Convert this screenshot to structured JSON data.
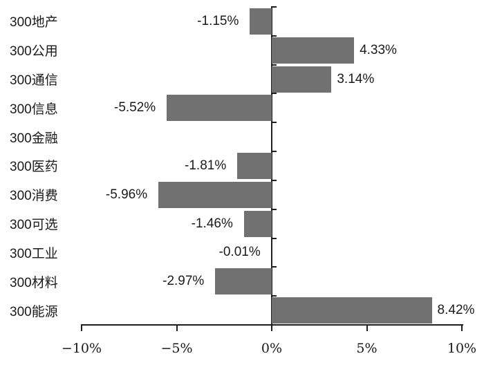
{
  "chart_data": {
    "type": "bar",
    "orientation": "horizontal",
    "title": "",
    "xlabel": "",
    "ylabel": "",
    "categories": [
      "300地产",
      "300公用",
      "300通信",
      "300信息",
      "300金融",
      "300医药",
      "300消费",
      "300可选",
      "300工业",
      "300材料",
      "300能源"
    ],
    "values": [
      -1.15,
      4.33,
      3.14,
      -5.52,
      null,
      -1.81,
      -5.96,
      -1.46,
      -0.01,
      -2.97,
      8.42
    ],
    "value_labels": [
      "-1.15%",
      "4.33%",
      "3.14%",
      "-5.52%",
      "",
      "-1.81%",
      "-5.96%",
      "-1.46%",
      "-0.01%",
      "-2.97%",
      "8.42%"
    ],
    "x_ticks": [
      {
        "value": -10,
        "label": "−10%"
      },
      {
        "value": -5,
        "label": "−5%"
      },
      {
        "value": 0,
        "label": "0%"
      },
      {
        "value": 5,
        "label": "5%"
      },
      {
        "value": 10,
        "label": "10%"
      }
    ],
    "xlim": [
      -10,
      10
    ],
    "grid": "off",
    "legend": "none",
    "bar_color": "#717171",
    "axis_color": "#1f1f1f",
    "text_color": "#1a1a1a"
  }
}
